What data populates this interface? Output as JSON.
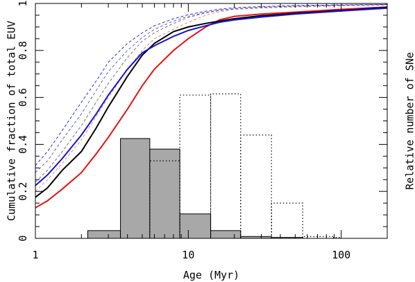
{
  "chart_data": {
    "type": "line",
    "xlabel": "Age (Myr)",
    "ylabel_left": "Cumulative fraction of total EUV",
    "ylabel_right": "Relative number of SNe",
    "x_scale": "log",
    "xlim": [
      1,
      200
    ],
    "ylim": [
      0,
      1
    ],
    "grid": false,
    "x_ticks": [
      {
        "value": 1,
        "label": "1"
      },
      {
        "value": 10,
        "label": "10"
      },
      {
        "value": 100,
        "label": "100"
      }
    ],
    "y_ticks": [
      {
        "value": 0,
        "label": "0"
      },
      {
        "value": 0.2,
        "label": "0.2"
      },
      {
        "value": 0.4,
        "label": "0.4"
      },
      {
        "value": 0.6,
        "label": "0.6"
      },
      {
        "value": 0.8,
        "label": "0.8"
      },
      {
        "value": 1,
        "label": "1"
      }
    ],
    "series": [
      {
        "style": "solid",
        "color": "#e81010",
        "points": [
          [
            1,
            0.13
          ],
          [
            1.2,
            0.16
          ],
          [
            1.5,
            0.21
          ],
          [
            2,
            0.28
          ],
          [
            2.5,
            0.36
          ],
          [
            3,
            0.43
          ],
          [
            4,
            0.55
          ],
          [
            5,
            0.65
          ],
          [
            6,
            0.72
          ],
          [
            8,
            0.8
          ],
          [
            10,
            0.85
          ],
          [
            13,
            0.9
          ],
          [
            16,
            0.93
          ],
          [
            20,
            0.945
          ],
          [
            30,
            0.955
          ],
          [
            50,
            0.963
          ],
          [
            100,
            0.975
          ],
          [
            200,
            0.985
          ]
        ]
      },
      {
        "style": "solid",
        "color": "#000000",
        "points": [
          [
            1,
            0.175
          ],
          [
            1.2,
            0.215
          ],
          [
            1.5,
            0.29
          ],
          [
            2,
            0.37
          ],
          [
            2.5,
            0.47
          ],
          [
            3,
            0.56
          ],
          [
            4,
            0.69
          ],
          [
            5,
            0.78
          ],
          [
            6,
            0.83
          ],
          [
            8,
            0.88
          ],
          [
            10,
            0.9
          ],
          [
            13,
            0.915
          ],
          [
            16,
            0.925
          ],
          [
            20,
            0.935
          ],
          [
            30,
            0.948
          ],
          [
            50,
            0.958
          ],
          [
            100,
            0.97
          ],
          [
            200,
            0.983
          ]
        ]
      },
      {
        "style": "solid",
        "color": "#1414dc",
        "points": [
          [
            1,
            0.225
          ],
          [
            1.2,
            0.27
          ],
          [
            1.5,
            0.34
          ],
          [
            2,
            0.44
          ],
          [
            2.5,
            0.53
          ],
          [
            3,
            0.61
          ],
          [
            4,
            0.72
          ],
          [
            5,
            0.79
          ],
          [
            6,
            0.82
          ],
          [
            8,
            0.86
          ],
          [
            10,
            0.885
          ],
          [
            13,
            0.905
          ],
          [
            16,
            0.92
          ],
          [
            20,
            0.93
          ],
          [
            30,
            0.942
          ],
          [
            50,
            0.955
          ],
          [
            100,
            0.968
          ],
          [
            200,
            0.98
          ]
        ]
      },
      {
        "style": "dashed",
        "color": "#e87878",
        "points": [
          [
            1,
            0.2
          ],
          [
            1.2,
            0.25
          ],
          [
            1.5,
            0.32
          ],
          [
            2,
            0.42
          ],
          [
            2.5,
            0.52
          ],
          [
            3,
            0.6
          ],
          [
            4,
            0.72
          ],
          [
            5,
            0.8
          ],
          [
            6,
            0.85
          ],
          [
            8,
            0.89
          ],
          [
            10,
            0.92
          ],
          [
            13,
            0.95
          ],
          [
            16,
            0.965
          ],
          [
            20,
            0.975
          ],
          [
            30,
            0.98
          ],
          [
            50,
            0.985
          ],
          [
            100,
            0.99
          ],
          [
            200,
            0.993
          ]
        ]
      },
      {
        "style": "dashed",
        "color": "#666666",
        "points": [
          [
            1,
            0.24
          ],
          [
            1.2,
            0.29
          ],
          [
            1.5,
            0.37
          ],
          [
            2,
            0.48
          ],
          [
            2.5,
            0.58
          ],
          [
            3,
            0.66
          ],
          [
            4,
            0.77
          ],
          [
            5,
            0.84
          ],
          [
            6,
            0.875
          ],
          [
            8,
            0.915
          ],
          [
            10,
            0.94
          ],
          [
            13,
            0.96
          ],
          [
            16,
            0.97
          ],
          [
            20,
            0.977
          ],
          [
            30,
            0.983
          ],
          [
            50,
            0.988
          ],
          [
            100,
            0.992
          ],
          [
            200,
            0.995
          ]
        ]
      },
      {
        "style": "dashed",
        "color": "#5050e0",
        "points": [
          [
            1,
            0.28
          ],
          [
            1.2,
            0.33
          ],
          [
            1.5,
            0.42
          ],
          [
            2,
            0.53
          ],
          [
            2.5,
            0.63
          ],
          [
            3,
            0.71
          ],
          [
            4,
            0.8
          ],
          [
            5,
            0.855
          ],
          [
            6,
            0.89
          ],
          [
            8,
            0.925
          ],
          [
            10,
            0.945
          ],
          [
            13,
            0.962
          ],
          [
            16,
            0.972
          ],
          [
            20,
            0.978
          ],
          [
            30,
            0.984
          ],
          [
            50,
            0.989
          ],
          [
            100,
            0.993
          ],
          [
            200,
            0.996
          ]
        ]
      },
      {
        "style": "dashed",
        "color": "#1414dc",
        "points": [
          [
            1,
            0.31
          ],
          [
            1.2,
            0.37
          ],
          [
            1.5,
            0.46
          ],
          [
            2,
            0.58
          ],
          [
            2.5,
            0.67
          ],
          [
            3,
            0.75
          ],
          [
            4,
            0.83
          ],
          [
            5,
            0.875
          ],
          [
            6,
            0.905
          ],
          [
            8,
            0.935
          ],
          [
            10,
            0.952
          ],
          [
            13,
            0.967
          ],
          [
            16,
            0.976
          ],
          [
            20,
            0.982
          ],
          [
            30,
            0.987
          ],
          [
            50,
            0.991
          ],
          [
            100,
            0.994
          ],
          [
            200,
            0.996
          ]
        ]
      }
    ],
    "histograms": [
      {
        "style": "filled",
        "fill": "#a8a8a8",
        "stroke": "#000000",
        "bins": [
          [
            2.2,
            3.6,
            0.033
          ],
          [
            3.6,
            5.6,
            0.425
          ],
          [
            5.6,
            8.8,
            0.38
          ],
          [
            8.8,
            14,
            0.104
          ],
          [
            14,
            22,
            0.033
          ],
          [
            22,
            35,
            0.008
          ],
          [
            35,
            56,
            0.004
          ]
        ]
      },
      {
        "style": "dotted",
        "stroke": "#000000",
        "bins": [
          [
            5.6,
            8.8,
            0.33
          ],
          [
            8.8,
            14,
            0.61
          ],
          [
            14,
            22,
            0.615
          ],
          [
            22,
            35,
            0.44
          ],
          [
            35,
            56,
            0.15
          ],
          [
            56,
            89,
            0.008
          ],
          [
            89,
            100,
            0.004
          ]
        ]
      }
    ]
  }
}
